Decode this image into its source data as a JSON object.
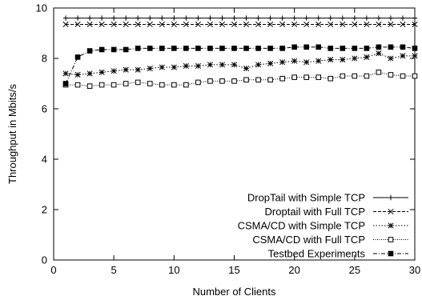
{
  "chart_data": {
    "type": "line",
    "title": "",
    "xlabel": "Number of Clients",
    "ylabel": "Throughput in Mbits/s",
    "xlim": [
      0,
      30
    ],
    "ylim": [
      0,
      10
    ],
    "xticks": [
      0,
      5,
      10,
      15,
      20,
      25,
      30
    ],
    "yticks": [
      0,
      2,
      4,
      6,
      8,
      10
    ],
    "grid": false,
    "legend_position": "bottom-right",
    "x": [
      1,
      2,
      3,
      4,
      5,
      6,
      7,
      8,
      9,
      10,
      11,
      12,
      13,
      14,
      15,
      16,
      17,
      18,
      19,
      20,
      21,
      22,
      23,
      24,
      25,
      26,
      27,
      28,
      29,
      30
    ],
    "series": [
      {
        "name": "DropTail with Simple TCP",
        "marker": "plus",
        "dash": "solid",
        "values": [
          9.6,
          9.6,
          9.6,
          9.6,
          9.6,
          9.6,
          9.6,
          9.6,
          9.6,
          9.6,
          9.6,
          9.6,
          9.6,
          9.6,
          9.6,
          9.6,
          9.6,
          9.6,
          9.6,
          9.6,
          9.6,
          9.6,
          9.6,
          9.6,
          9.6,
          9.6,
          9.6,
          9.6,
          9.6,
          9.6
        ]
      },
      {
        "name": "Droptail with Full TCP",
        "marker": "x",
        "dash": "dashed",
        "values": [
          9.35,
          9.35,
          9.35,
          9.35,
          9.35,
          9.35,
          9.35,
          9.35,
          9.35,
          9.35,
          9.35,
          9.35,
          9.35,
          9.35,
          9.35,
          9.35,
          9.35,
          9.35,
          9.35,
          9.35,
          9.35,
          9.35,
          9.35,
          9.35,
          9.35,
          9.35,
          9.35,
          9.35,
          9.35,
          9.35
        ]
      },
      {
        "name": "CSMA/CD with Simple TCP",
        "marker": "asterisk",
        "dash": "dotted",
        "values": [
          7.4,
          7.35,
          7.4,
          7.45,
          7.5,
          7.55,
          7.55,
          7.6,
          7.65,
          7.65,
          7.7,
          7.7,
          7.75,
          7.75,
          7.75,
          7.6,
          7.75,
          7.8,
          7.85,
          7.9,
          7.85,
          7.9,
          7.95,
          7.95,
          8.0,
          8.05,
          8.2,
          8.0,
          8.1,
          8.1
        ]
      },
      {
        "name": "CSMA/CD with Full TCP",
        "marker": "square-open",
        "dash": "dotted-fine",
        "values": [
          6.95,
          6.95,
          6.9,
          6.95,
          6.95,
          7.0,
          7.05,
          7.0,
          6.95,
          6.95,
          6.95,
          7.05,
          7.1,
          7.1,
          7.1,
          7.15,
          7.15,
          7.15,
          7.2,
          7.25,
          7.25,
          7.25,
          7.2,
          7.3,
          7.3,
          7.3,
          7.45,
          7.35,
          7.3,
          7.3
        ]
      },
      {
        "name": "Testbed Experiments",
        "marker": "square-filled",
        "dash": "dashdot",
        "values": [
          7.0,
          8.05,
          8.3,
          8.35,
          8.35,
          8.35,
          8.4,
          8.4,
          8.4,
          8.4,
          8.4,
          8.4,
          8.4,
          8.4,
          8.4,
          8.4,
          8.4,
          8.4,
          8.4,
          8.45,
          8.45,
          8.45,
          8.4,
          8.4,
          8.4,
          8.4,
          8.45,
          8.45,
          8.45,
          8.4
        ]
      }
    ]
  }
}
